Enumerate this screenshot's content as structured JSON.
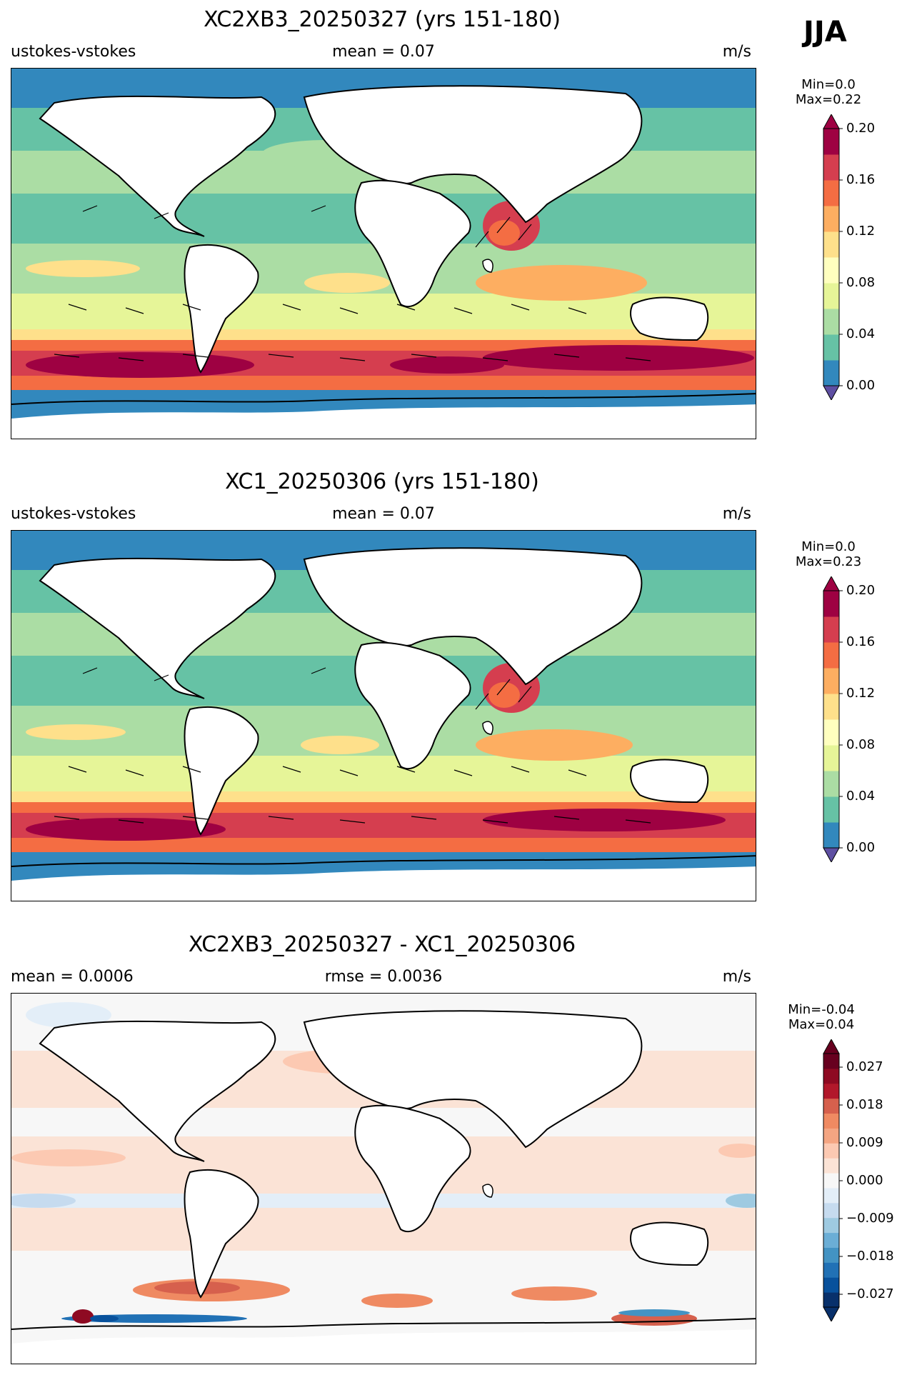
{
  "figure": {
    "season_label": "JJA"
  },
  "panels": [
    {
      "id": "p1",
      "title": "XC2XB3_20250327 (yrs 151-180)",
      "left_label": "ustokes-vstokes",
      "center_label": "mean = 0.07",
      "right_label": "m/s",
      "stats": {
        "min_label": "Min=0.0",
        "max_label": "Max=0.22"
      },
      "colorbar": {
        "ticks": [
          "0.20",
          "0.16",
          "0.12",
          "0.08",
          "0.04",
          "0.00"
        ],
        "colors": [
          "#3288bd",
          "#66c2a5",
          "#abdda4",
          "#e6f598",
          "#ffffbf",
          "#fee08b",
          "#fdae61",
          "#f46d43",
          "#d53e4f",
          "#9e0142"
        ],
        "under_color": "#5e4fa2",
        "over_color": "#9e0142"
      }
    },
    {
      "id": "p2",
      "title": "XC1_20250306 (yrs 151-180)",
      "left_label": "ustokes-vstokes",
      "center_label": "mean = 0.07",
      "right_label": "m/s",
      "stats": {
        "min_label": "Min=0.0",
        "max_label": "Max=0.23"
      },
      "colorbar": {
        "ticks": [
          "0.20",
          "0.16",
          "0.12",
          "0.08",
          "0.04",
          "0.00"
        ],
        "colors": [
          "#3288bd",
          "#66c2a5",
          "#abdda4",
          "#e6f598",
          "#ffffbf",
          "#fee08b",
          "#fdae61",
          "#f46d43",
          "#d53e4f",
          "#9e0142"
        ],
        "under_color": "#5e4fa2",
        "over_color": "#9e0142"
      }
    },
    {
      "id": "p3",
      "title": "XC2XB3_20250327 - XC1_20250306",
      "left_label": "mean = 0.0006",
      "center_label": "rmse = 0.0036",
      "right_label": "m/s",
      "stats": {
        "min_label": "Min=-0.04",
        "max_label": "Max=0.04"
      },
      "colorbar": {
        "ticks": [
          "0.027",
          "0.018",
          "0.009",
          "0.000",
          "−0.009",
          "−0.018",
          "−0.027"
        ],
        "colors": [
          "#08306b",
          "#08519c",
          "#2171b5",
          "#4393c3",
          "#6baed6",
          "#9ecae1",
          "#c6dbef",
          "#e3eef8",
          "#f7f7f7",
          "#fbe3d6",
          "#fcc9b2",
          "#f4a582",
          "#ef8a62",
          "#d6604d",
          "#b2182b",
          "#8e0a22",
          "#67001f"
        ],
        "under_color": "#08306b",
        "over_color": "#67001f"
      }
    }
  ]
}
